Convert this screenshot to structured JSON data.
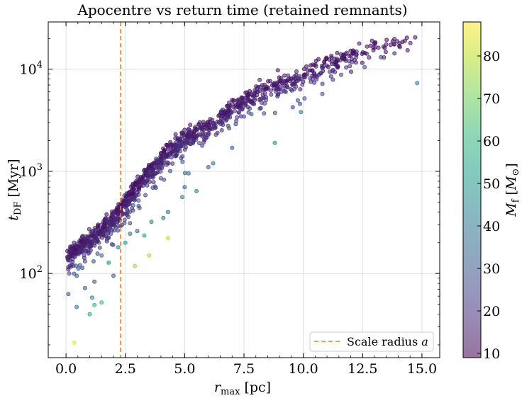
{
  "chart_data": {
    "type": "scatter",
    "title": "Apocentre vs return time (retained remnants)",
    "xlabel_main": "r",
    "xlabel_sub": "max",
    "xlabel_unit": " [pc]",
    "ylabel_main": "t",
    "ylabel_sub": "DF",
    "ylabel_unit": " [Myr]",
    "x_ticks": [
      "0.0",
      "2.5",
      "5.0",
      "7.5",
      "10.0",
      "12.5",
      "15.0"
    ],
    "x_tick_values": [
      0,
      2.5,
      5,
      7.5,
      10,
      12.5,
      15
    ],
    "xlim": [
      -0.75,
      15.75
    ],
    "y_scale": "log",
    "ylim": [
      15,
      29000
    ],
    "y_ticks": [
      {
        "value": 100,
        "base": "10",
        "exp": "2"
      },
      {
        "value": 1000,
        "base": "10",
        "exp": "3"
      },
      {
        "value": 10000,
        "base": "10",
        "exp": "4"
      }
    ],
    "grid": true,
    "colorbar": {
      "label_main": "M",
      "label_sub": "f",
      "label_unit_open": " [",
      "label_unit_main": "M",
      "label_unit_sub": "⊙",
      "label_unit_close": "]",
      "ticks": [
        "10",
        "20",
        "30",
        "40",
        "50",
        "60",
        "70",
        "80"
      ],
      "tick_values": [
        10,
        20,
        30,
        40,
        50,
        60,
        70,
        80
      ],
      "range": [
        9,
        88
      ],
      "colormap": [
        "#440154",
        "#482878",
        "#3e4989",
        "#31688e",
        "#26828e",
        "#1f9e89",
        "#35b779",
        "#6ece58",
        "#b5de2b",
        "#fde725"
      ]
    },
    "vline": {
      "x": 2.3,
      "color": "#ff7f0e",
      "label": "Scale radius a",
      "label_main": "Scale radius ",
      "label_var": "a"
    },
    "legend_position": "bottom-right",
    "outliers": [
      {
        "x": 0.35,
        "y": 21,
        "m": 85
      },
      {
        "x": 0.1,
        "y": 63,
        "m": 32
      },
      {
        "x": 0.45,
        "y": 47,
        "m": 40
      },
      {
        "x": 1.0,
        "y": 40,
        "m": 55
      },
      {
        "x": 1.2,
        "y": 49,
        "m": 60
      },
      {
        "x": 1.1,
        "y": 58,
        "m": 45
      },
      {
        "x": 1.5,
        "y": 52,
        "m": 62
      },
      {
        "x": 2.9,
        "y": 118,
        "m": 75
      },
      {
        "x": 3.5,
        "y": 150,
        "m": 78
      },
      {
        "x": 4.3,
        "y": 222,
        "m": 80
      },
      {
        "x": 3.3,
        "y": 235,
        "m": 55
      },
      {
        "x": 2.5,
        "y": 200,
        "m": 50
      },
      {
        "x": 1.8,
        "y": 128,
        "m": 48
      },
      {
        "x": 2.2,
        "y": 180,
        "m": 42
      },
      {
        "x": 2.7,
        "y": 245,
        "m": 38
      },
      {
        "x": 3.6,
        "y": 320,
        "m": 45
      },
      {
        "x": 4.1,
        "y": 350,
        "m": 40
      },
      {
        "x": 4.3,
        "y": 400,
        "m": 38
      },
      {
        "x": 4.9,
        "y": 560,
        "m": 40
      },
      {
        "x": 5.5,
        "y": 640,
        "m": 42
      },
      {
        "x": 6.2,
        "y": 1200,
        "m": 38
      },
      {
        "x": 8.8,
        "y": 1900,
        "m": 45
      },
      {
        "x": 9.9,
        "y": 3800,
        "m": 40
      },
      {
        "x": 14.8,
        "y": 7300,
        "m": 42
      },
      {
        "x": 1.5,
        "y": 150,
        "m": 35
      },
      {
        "x": 2.0,
        "y": 95,
        "m": 30
      },
      {
        "x": 1.2,
        "y": 83,
        "m": 28
      },
      {
        "x": 0.8,
        "y": 72,
        "m": 30
      },
      {
        "x": 3.0,
        "y": 260,
        "m": 33
      },
      {
        "x": 5.0,
        "y": 700,
        "m": 32
      },
      {
        "x": 6.0,
        "y": 1100,
        "m": 30
      },
      {
        "x": 7.0,
        "y": 1700,
        "m": 30
      }
    ]
  }
}
